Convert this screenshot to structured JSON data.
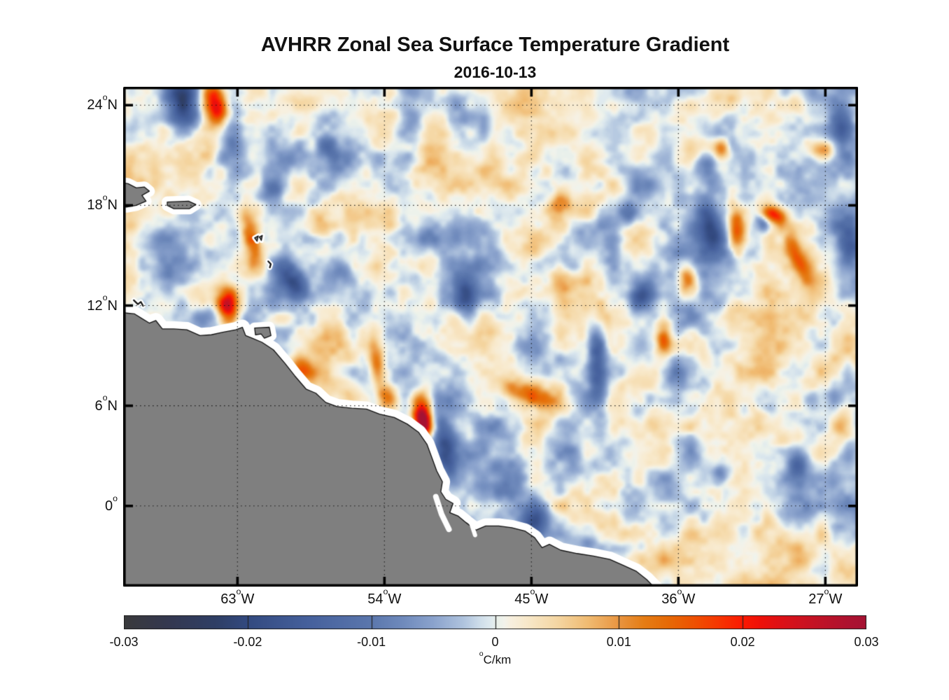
{
  "header": {
    "title": "AVHRR Zonal Sea Surface Temperature Gradient",
    "subtitle": "2016-10-13"
  },
  "chart_data": {
    "type": "heatmap",
    "title": "AVHRR Zonal Sea Surface Temperature Gradient",
    "subtitle": "2016-10-13",
    "grid": {
      "style": "dotted",
      "color": "rgba(15,15,15,0.85)"
    },
    "geo": {
      "lon_min": -70.0,
      "lon_max": -25.0,
      "lat_min": -4.83,
      "lat_max": 25.1
    },
    "x_ticks": [
      {
        "value": -63,
        "label": "63°W"
      },
      {
        "value": -54,
        "label": "54°W"
      },
      {
        "value": -45,
        "label": "45°W"
      },
      {
        "value": -36,
        "label": "36°W"
      },
      {
        "value": -27,
        "label": "27°W"
      }
    ],
    "y_ticks": [
      {
        "value": 24,
        "label": "24°N"
      },
      {
        "value": 18,
        "label": "18°N"
      },
      {
        "value": 12,
        "label": "12°N"
      },
      {
        "value": 6,
        "label": "6°N"
      },
      {
        "value": 0,
        "label": "0°"
      }
    ],
    "colorbar": {
      "min": -0.03,
      "max": 0.03,
      "unit": "°C/km",
      "ticks": [
        {
          "value": -0.03,
          "label": "-0.03"
        },
        {
          "value": -0.02,
          "label": "-0.02"
        },
        {
          "value": -0.01,
          "label": "-0.01"
        },
        {
          "value": 0,
          "label": "0"
        },
        {
          "value": 0.01,
          "label": "0.01"
        },
        {
          "value": 0.02,
          "label": "0.02"
        },
        {
          "value": 0.03,
          "label": "0.03"
        }
      ],
      "stops": [
        [
          0.0,
          "#3a3a3c"
        ],
        [
          0.06,
          "#343850"
        ],
        [
          0.125,
          "#2f3f66"
        ],
        [
          0.167,
          "#334a80"
        ],
        [
          0.25,
          "#46619d"
        ],
        [
          0.333,
          "#5b77ad"
        ],
        [
          0.375,
          "#6f8abc"
        ],
        [
          0.417,
          "#8ba3cd"
        ],
        [
          0.458,
          "#b0c4de"
        ],
        [
          0.48,
          "#cfdeea"
        ],
        [
          0.495,
          "#e0ebef"
        ],
        [
          0.503,
          "#eaf1ea"
        ],
        [
          0.512,
          "#f2f3ec"
        ],
        [
          0.52,
          "#f7f0e0"
        ],
        [
          0.542,
          "#f8e9cb"
        ],
        [
          0.583,
          "#f5d7a4"
        ],
        [
          0.625,
          "#f0bb72"
        ],
        [
          0.667,
          "#e99540"
        ],
        [
          0.7,
          "#e57d15"
        ],
        [
          0.733,
          "#e66a06"
        ],
        [
          0.767,
          "#ee5202"
        ],
        [
          0.8,
          "#f63701"
        ],
        [
          0.833,
          "#fb1a02"
        ],
        [
          0.858,
          "#ee1009"
        ],
        [
          0.892,
          "#d91119"
        ],
        [
          0.933,
          "#c21325"
        ],
        [
          0.975,
          "#ae1230"
        ],
        [
          1.0,
          "#a51233"
        ]
      ]
    },
    "field": {
      "noise_seed": 11,
      "octaves": [
        [
          3.2,
          0.0052
        ],
        [
          1.6,
          0.0042
        ],
        [
          0.8,
          0.0028
        ],
        [
          0.42,
          0.0013
        ]
      ],
      "blobs": [
        [
          -66.25,
          24.05,
          -0.023,
          0.75,
          1.3,
          8
        ],
        [
          -64.35,
          24.0,
          0.026,
          0.55,
          0.95,
          12
        ],
        [
          -63.3,
          22.0,
          -0.011,
          0.55,
          2.2,
          4
        ],
        [
          -57.3,
          21.2,
          -0.012,
          0.55,
          0.85,
          20
        ],
        [
          -52.3,
          23.4,
          -0.008,
          0.5,
          1.1,
          8
        ],
        [
          -61.0,
          18.9,
          -0.008,
          0.6,
          0.5,
          0
        ],
        [
          -62.05,
          15.7,
          0.015,
          0.38,
          1.15,
          12
        ],
        [
          -63.55,
          12.0,
          0.023,
          0.45,
          0.68,
          0
        ],
        [
          -64.9,
          11.3,
          -0.013,
          0.8,
          0.5,
          15
        ],
        [
          -59.85,
          13.6,
          -0.015,
          0.5,
          0.85,
          30
        ],
        [
          -56.6,
          14.05,
          -0.009,
          0.55,
          0.55,
          0
        ],
        [
          -57.8,
          16.8,
          0.009,
          0.5,
          0.7,
          14
        ],
        [
          -59.0,
          8.1,
          0.014,
          0.6,
          0.5,
          -30
        ],
        [
          -54.5,
          8.6,
          0.013,
          0.32,
          1.1,
          8
        ],
        [
          -53.75,
          6.5,
          0.016,
          0.45,
          0.6,
          0
        ],
        [
          -51.6,
          5.4,
          0.022,
          0.5,
          1.05,
          8
        ],
        [
          -51.65,
          4.95,
          0.02,
          0.3,
          0.55,
          5
        ],
        [
          -50.35,
          3.6,
          -0.016,
          0.5,
          1.7,
          10
        ],
        [
          -51.05,
          1.3,
          -0.012,
          0.4,
          1.0,
          14
        ],
        [
          -44.85,
          -0.9,
          -0.014,
          0.55,
          0.7,
          -25
        ],
        [
          -45.0,
          6.6,
          0.015,
          1.05,
          0.45,
          -18
        ],
        [
          -49.0,
          12.4,
          -0.014,
          0.45,
          0.8,
          8
        ],
        [
          -43.2,
          13.2,
          0.01,
          0.45,
          0.9,
          10
        ],
        [
          -41.0,
          8.8,
          -0.015,
          0.4,
          1.6,
          3
        ],
        [
          -38.2,
          12.5,
          -0.013,
          0.45,
          0.7,
          -35
        ],
        [
          -35.5,
          13.7,
          0.015,
          0.4,
          0.6,
          0
        ],
        [
          -36.9,
          10.1,
          0.015,
          0.35,
          0.7,
          0
        ],
        [
          -36.2,
          8.0,
          -0.009,
          0.5,
          0.6,
          0
        ],
        [
          -34.0,
          16.5,
          -0.017,
          0.55,
          1.1,
          12
        ],
        [
          -32.45,
          16.5,
          0.017,
          0.35,
          0.95,
          4
        ],
        [
          -30.1,
          17.4,
          0.015,
          0.55,
          0.35,
          -20
        ],
        [
          -30.9,
          16.9,
          -0.011,
          0.3,
          0.32,
          0
        ],
        [
          -28.75,
          14.9,
          0.016,
          0.35,
          1.0,
          22
        ],
        [
          -25.5,
          15.8,
          -0.013,
          0.6,
          0.95,
          8
        ],
        [
          -25.9,
          22.6,
          -0.013,
          0.5,
          1.3,
          8
        ],
        [
          -27.2,
          21.2,
          0.012,
          0.5,
          0.4,
          0
        ],
        [
          -34.3,
          20.3,
          -0.011,
          0.45,
          0.6,
          18
        ],
        [
          -33.3,
          21.4,
          0.011,
          0.35,
          0.45,
          0
        ],
        [
          -39.0,
          17.5,
          -0.01,
          0.4,
          0.5,
          0
        ],
        [
          -43.3,
          18.0,
          0.009,
          0.5,
          0.5,
          0
        ],
        [
          -47.3,
          20.7,
          0.008,
          0.8,
          0.6,
          0
        ],
        [
          -28.7,
          2.7,
          -0.015,
          0.5,
          0.75,
          12
        ],
        [
          -33.4,
          2.1,
          -0.011,
          0.4,
          0.5,
          0
        ],
        [
          -26.0,
          4.6,
          0.011,
          0.6,
          0.9,
          0
        ],
        [
          -41.2,
          -2.4,
          -0.007,
          1.6,
          0.4,
          -8
        ]
      ]
    },
    "land": {
      "color": "#7f7f7f",
      "outline": "#111111",
      "halo": "#ffffff",
      "mainland": [
        [
          -70.4,
          11.75
        ],
        [
          -69.8,
          11.55
        ],
        [
          -69.3,
          11.5
        ],
        [
          -68.9,
          11.25
        ],
        [
          -68.4,
          10.95
        ],
        [
          -68.0,
          11.1
        ],
        [
          -67.6,
          10.6
        ],
        [
          -66.9,
          10.6
        ],
        [
          -66.1,
          10.55
        ],
        [
          -65.3,
          10.2
        ],
        [
          -64.6,
          10.25
        ],
        [
          -63.9,
          10.4
        ],
        [
          -63.1,
          10.55
        ],
        [
          -62.7,
          10.7
        ],
        [
          -62.5,
          10.2
        ],
        [
          -62.1,
          10.05
        ],
        [
          -61.5,
          9.8
        ],
        [
          -60.8,
          9.35
        ],
        [
          -60.1,
          8.55
        ],
        [
          -59.5,
          7.8
        ],
        [
          -58.8,
          7.0
        ],
        [
          -58.2,
          6.75
        ],
        [
          -57.6,
          6.2
        ],
        [
          -56.9,
          5.95
        ],
        [
          -56.0,
          5.85
        ],
        [
          -55.1,
          5.8
        ],
        [
          -54.3,
          5.5
        ],
        [
          -53.4,
          5.3
        ],
        [
          -52.6,
          4.9
        ],
        [
          -51.9,
          4.4
        ],
        [
          -51.4,
          3.7
        ],
        [
          -51.1,
          2.9
        ],
        [
          -50.8,
          2.1
        ],
        [
          -50.45,
          1.45
        ],
        [
          -50.55,
          0.85
        ],
        [
          -50.25,
          0.4
        ],
        [
          -49.8,
          0.15
        ],
        [
          -50.0,
          -0.4
        ],
        [
          -49.5,
          -0.6
        ],
        [
          -49.0,
          -1.0
        ],
        [
          -48.4,
          -1.45
        ],
        [
          -47.8,
          -1.2
        ],
        [
          -47.0,
          -1.2
        ],
        [
          -46.2,
          -1.3
        ],
        [
          -45.4,
          -1.5
        ],
        [
          -44.8,
          -1.9
        ],
        [
          -44.35,
          -2.5
        ],
        [
          -43.9,
          -2.3
        ],
        [
          -43.2,
          -2.65
        ],
        [
          -42.2,
          -2.85
        ],
        [
          -41.2,
          -3.0
        ],
        [
          -40.2,
          -3.2
        ],
        [
          -39.4,
          -3.55
        ],
        [
          -38.6,
          -3.9
        ],
        [
          -37.95,
          -4.4
        ],
        [
          -37.35,
          -5.0
        ],
        [
          -37.1,
          -5.4
        ],
        [
          -70.5,
          -5.4
        ]
      ],
      "islands": {
        "hispaniola": [
          [
            -70.45,
            19.4
          ],
          [
            -69.7,
            19.3
          ],
          [
            -69.2,
            19.05
          ],
          [
            -68.7,
            19.1
          ],
          [
            -68.4,
            18.85
          ],
          [
            -68.85,
            18.6
          ],
          [
            -68.6,
            18.25
          ],
          [
            -69.2,
            18.0
          ],
          [
            -69.8,
            17.9
          ],
          [
            -70.45,
            17.95
          ]
        ],
        "puerto_rico": [
          [
            -67.3,
            18.2
          ],
          [
            -66.0,
            18.25
          ],
          [
            -65.55,
            18.05
          ],
          [
            -65.95,
            17.8
          ],
          [
            -66.9,
            17.8
          ],
          [
            -67.3,
            18.0
          ]
        ],
        "trinidad": [
          [
            -61.95,
            10.65
          ],
          [
            -61.05,
            10.7
          ],
          [
            -60.95,
            10.2
          ],
          [
            -61.35,
            10.05
          ],
          [
            -61.55,
            10.3
          ],
          [
            -61.9,
            10.25
          ]
        ]
      },
      "islets": [
        {
          "name": "guadeloupe-west",
          "closed": true,
          "pts": [
            [
              -61.95,
              16.05
            ],
            [
              -61.73,
              16.17
            ],
            [
              -61.8,
              15.85
            ]
          ]
        },
        {
          "name": "guadeloupe-east",
          "closed": true,
          "pts": [
            [
              -61.66,
              16.1
            ],
            [
              -61.48,
              16.2
            ],
            [
              -61.54,
              15.9
            ]
          ]
        },
        {
          "name": "martinique",
          "closed": false,
          "pts": [
            [
              -61.12,
              14.65
            ],
            [
              -60.96,
              14.48
            ],
            [
              -61.02,
              14.28
            ]
          ]
        },
        {
          "name": "curacao-bonaire",
          "closed": false,
          "pts": [
            [
              -69.35,
              12.32
            ],
            [
              -69.1,
              12.08
            ],
            [
              -68.92,
              12.22
            ],
            [
              -68.78,
              11.98
            ]
          ]
        }
      ],
      "channels": [
        {
          "width": 8,
          "pts": [
            [
              -50.85,
              0.55
            ],
            [
              -50.5,
              -0.5
            ],
            [
              -50.05,
              -1.4
            ]
          ]
        },
        {
          "width": 6,
          "pts": [
            [
              -48.8,
              -0.75
            ],
            [
              -48.6,
              -1.3
            ],
            [
              -48.45,
              -1.75
            ]
          ]
        }
      ]
    }
  }
}
